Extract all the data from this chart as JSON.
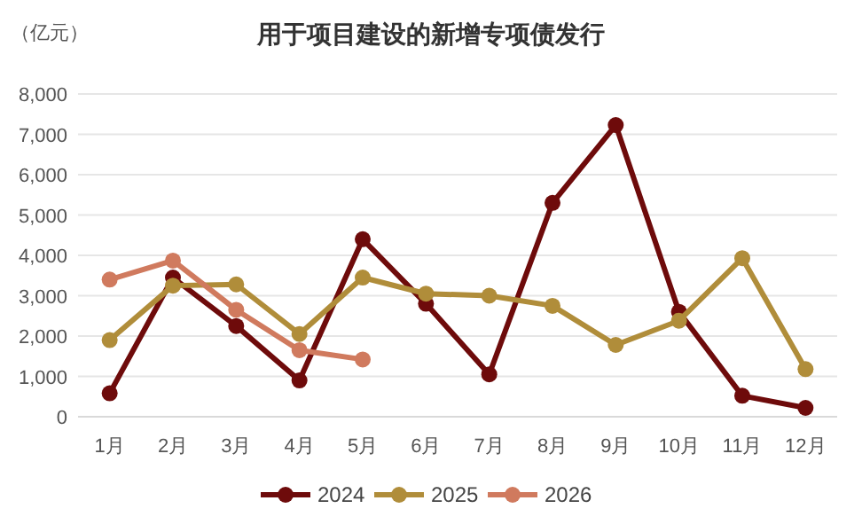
{
  "chart_data": {
    "type": "line",
    "title": "用于项目建设的新增专项债发行",
    "ylabel": "（亿元）",
    "categories": [
      "1月",
      "2月",
      "3月",
      "4月",
      "5月",
      "6月",
      "7月",
      "8月",
      "9月",
      "10月",
      "11月",
      "12月"
    ],
    "series": [
      {
        "name": "2024",
        "color": "#6e0b0b",
        "values": [
          580,
          3450,
          2250,
          900,
          4400,
          2800,
          1050,
          5300,
          7230,
          2600,
          520,
          220
        ]
      },
      {
        "name": "2025",
        "color": "#b08d3a",
        "values": [
          1900,
          3250,
          3280,
          2050,
          3450,
          3050,
          3000,
          2750,
          1780,
          2380,
          3930,
          1180
        ]
      },
      {
        "name": "2026",
        "color": "#d07a5e",
        "values": [
          3400,
          3870,
          2650,
          1650,
          1420,
          null,
          null,
          null,
          null,
          null,
          null,
          null
        ]
      }
    ],
    "ylim": [
      0,
      8000
    ],
    "yticks": [
      {
        "value": 0,
        "label": "0"
      },
      {
        "value": 1000,
        "label": "1,000"
      },
      {
        "value": 2000,
        "label": "2,000"
      },
      {
        "value": 3000,
        "label": "3,000"
      },
      {
        "value": 4000,
        "label": "4,000"
      },
      {
        "value": 5000,
        "label": "5,000"
      },
      {
        "value": 6000,
        "label": "6,000"
      },
      {
        "value": 7000,
        "label": "7,000"
      },
      {
        "value": 8000,
        "label": "8,000"
      }
    ],
    "grid": "y",
    "legend": "bottom",
    "marker": "circle",
    "line_style": "solid"
  }
}
